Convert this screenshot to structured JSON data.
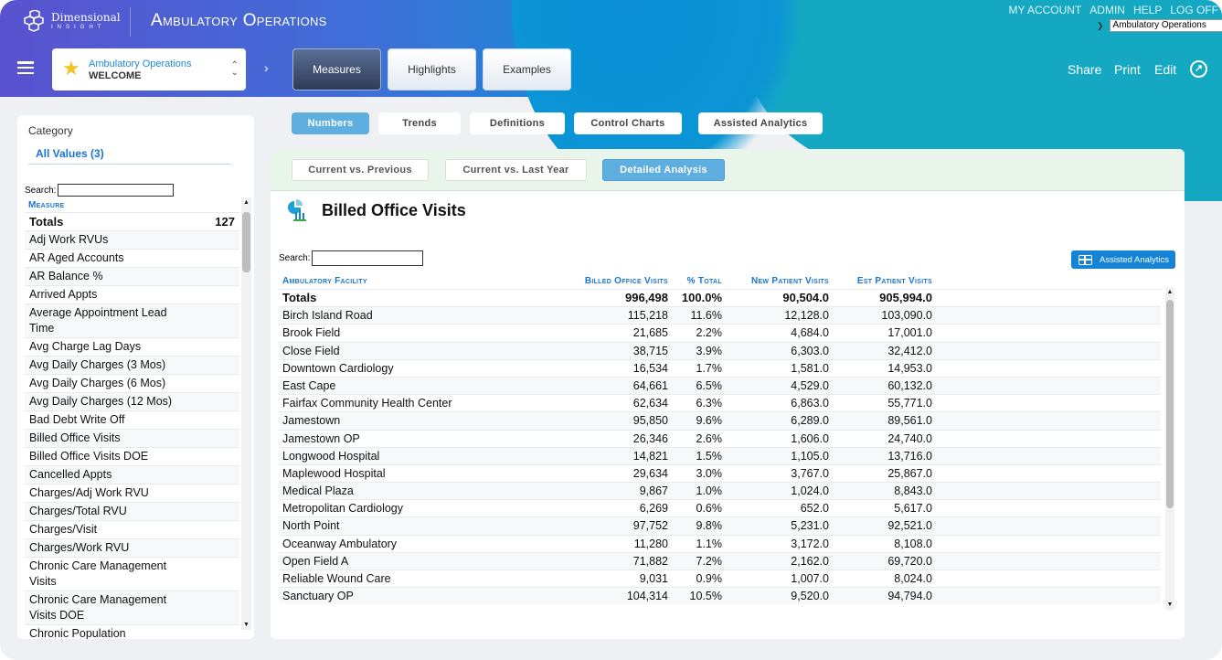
{
  "header": {
    "logo_line1": "Dimensional",
    "logo_line2": "INSIGHT",
    "app_title": "Ambulatory Operations",
    "top_links": [
      "MY ACCOUNT",
      "ADMIN",
      "HELP",
      "LOG OFF"
    ],
    "app_select": "Ambulatory Operations",
    "breadcrumb": {
      "app": "Ambulatory Operations",
      "page": "WELCOME"
    },
    "nav_buttons": [
      {
        "label": "Measures",
        "active": true
      },
      {
        "label": "Highlights",
        "active": false
      },
      {
        "label": "Examples",
        "active": false
      }
    ],
    "actions": [
      "Share",
      "Print",
      "Edit"
    ]
  },
  "sidebar": {
    "category_label": "Category",
    "category_value": "All Values (3)",
    "search_label": "Search:",
    "search_value": "",
    "column_header": "Measure",
    "totals": {
      "label": "Totals",
      "value": "127"
    },
    "items": [
      "Adj Work RVUs",
      "AR Aged Accounts",
      "AR Balance %",
      "Arrived Appts",
      "Average Appointment Lead Time",
      "Avg Charge Lag Days",
      "Avg Daily Charges (3 Mos)",
      "Avg Daily Charges (6 Mos)",
      "Avg Daily Charges (12 Mos)",
      "Bad Debt Write Off",
      "Billed Office Visits",
      "Billed Office Visits DOE",
      "Cancelled Appts",
      "Charges/Adj Work RVU",
      "Charges/Total RVU",
      "Charges/Visit",
      "Charges/Work RVU",
      "Chronic Care Management Visits",
      "Chronic Care Management Visits DOE",
      "Chronic Population"
    ]
  },
  "tabs": [
    {
      "label": "Numbers",
      "active": true
    },
    {
      "label": "Trends",
      "active": false
    },
    {
      "label": "Definitions",
      "active": false
    },
    {
      "label": "Control Charts",
      "active": false
    },
    {
      "label": "Assisted Analytics",
      "active": false
    }
  ],
  "subtabs": [
    {
      "label": "Current vs. Previous",
      "active": false
    },
    {
      "label": "Current vs. Last Year",
      "active": false
    },
    {
      "label": "Detailed Analysis",
      "active": true
    }
  ],
  "main": {
    "title": "Billed Office Visits",
    "search_label": "Search:",
    "search_value": "",
    "assisted_analytics_label": "Assisted Analytics",
    "columns": [
      "Ambulatory Facility",
      "Billed Office Visits",
      "% Total",
      "New Patient Visits",
      "Est Patient Visits"
    ],
    "totals": [
      "Totals",
      "996,498",
      "100.0%",
      "90,504.0",
      "905,994.0"
    ],
    "rows": [
      [
        "Birch Island Road",
        "115,218",
        "11.6%",
        "12,128.0",
        "103,090.0"
      ],
      [
        "Brook Field",
        "21,685",
        "2.2%",
        "4,684.0",
        "17,001.0"
      ],
      [
        "Close Field",
        "38,715",
        "3.9%",
        "6,303.0",
        "32,412.0"
      ],
      [
        "Downtown Cardiology",
        "16,534",
        "1.7%",
        "1,581.0",
        "14,953.0"
      ],
      [
        "East Cape",
        "64,661",
        "6.5%",
        "4,529.0",
        "60,132.0"
      ],
      [
        "Fairfax Community Health Center",
        "62,634",
        "6.3%",
        "6,863.0",
        "55,771.0"
      ],
      [
        "Jamestown",
        "95,850",
        "9.6%",
        "6,289.0",
        "89,561.0"
      ],
      [
        "Jamestown OP",
        "26,346",
        "2.6%",
        "1,606.0",
        "24,740.0"
      ],
      [
        "Longwood Hospital",
        "14,821",
        "1.5%",
        "1,105.0",
        "13,716.0"
      ],
      [
        "Maplewood Hospital",
        "29,634",
        "3.0%",
        "3,767.0",
        "25,867.0"
      ],
      [
        "Medical Plaza",
        "9,867",
        "1.0%",
        "1,024.0",
        "8,843.0"
      ],
      [
        "Metropolitan Cardiology",
        "6,269",
        "0.6%",
        "652.0",
        "5,617.0"
      ],
      [
        "North Point",
        "97,752",
        "9.8%",
        "5,231.0",
        "92,521.0"
      ],
      [
        "Oceanway Ambulatory",
        "11,280",
        "1.1%",
        "3,172.0",
        "8,108.0"
      ],
      [
        "Open Field A",
        "71,882",
        "7.2%",
        "2,162.0",
        "69,720.0"
      ],
      [
        "Reliable Wound Care",
        "9,031",
        "0.9%",
        "1,007.0",
        "8,024.0"
      ],
      [
        "Sanctuary OP",
        "104,314",
        "10.5%",
        "9,520.0",
        "94,794.0"
      ]
    ]
  },
  "colors": {
    "accent": "#1a75d0",
    "active_tab": "#5eaee0",
    "button_blue": "#1583d6",
    "star": "#f5c321"
  }
}
